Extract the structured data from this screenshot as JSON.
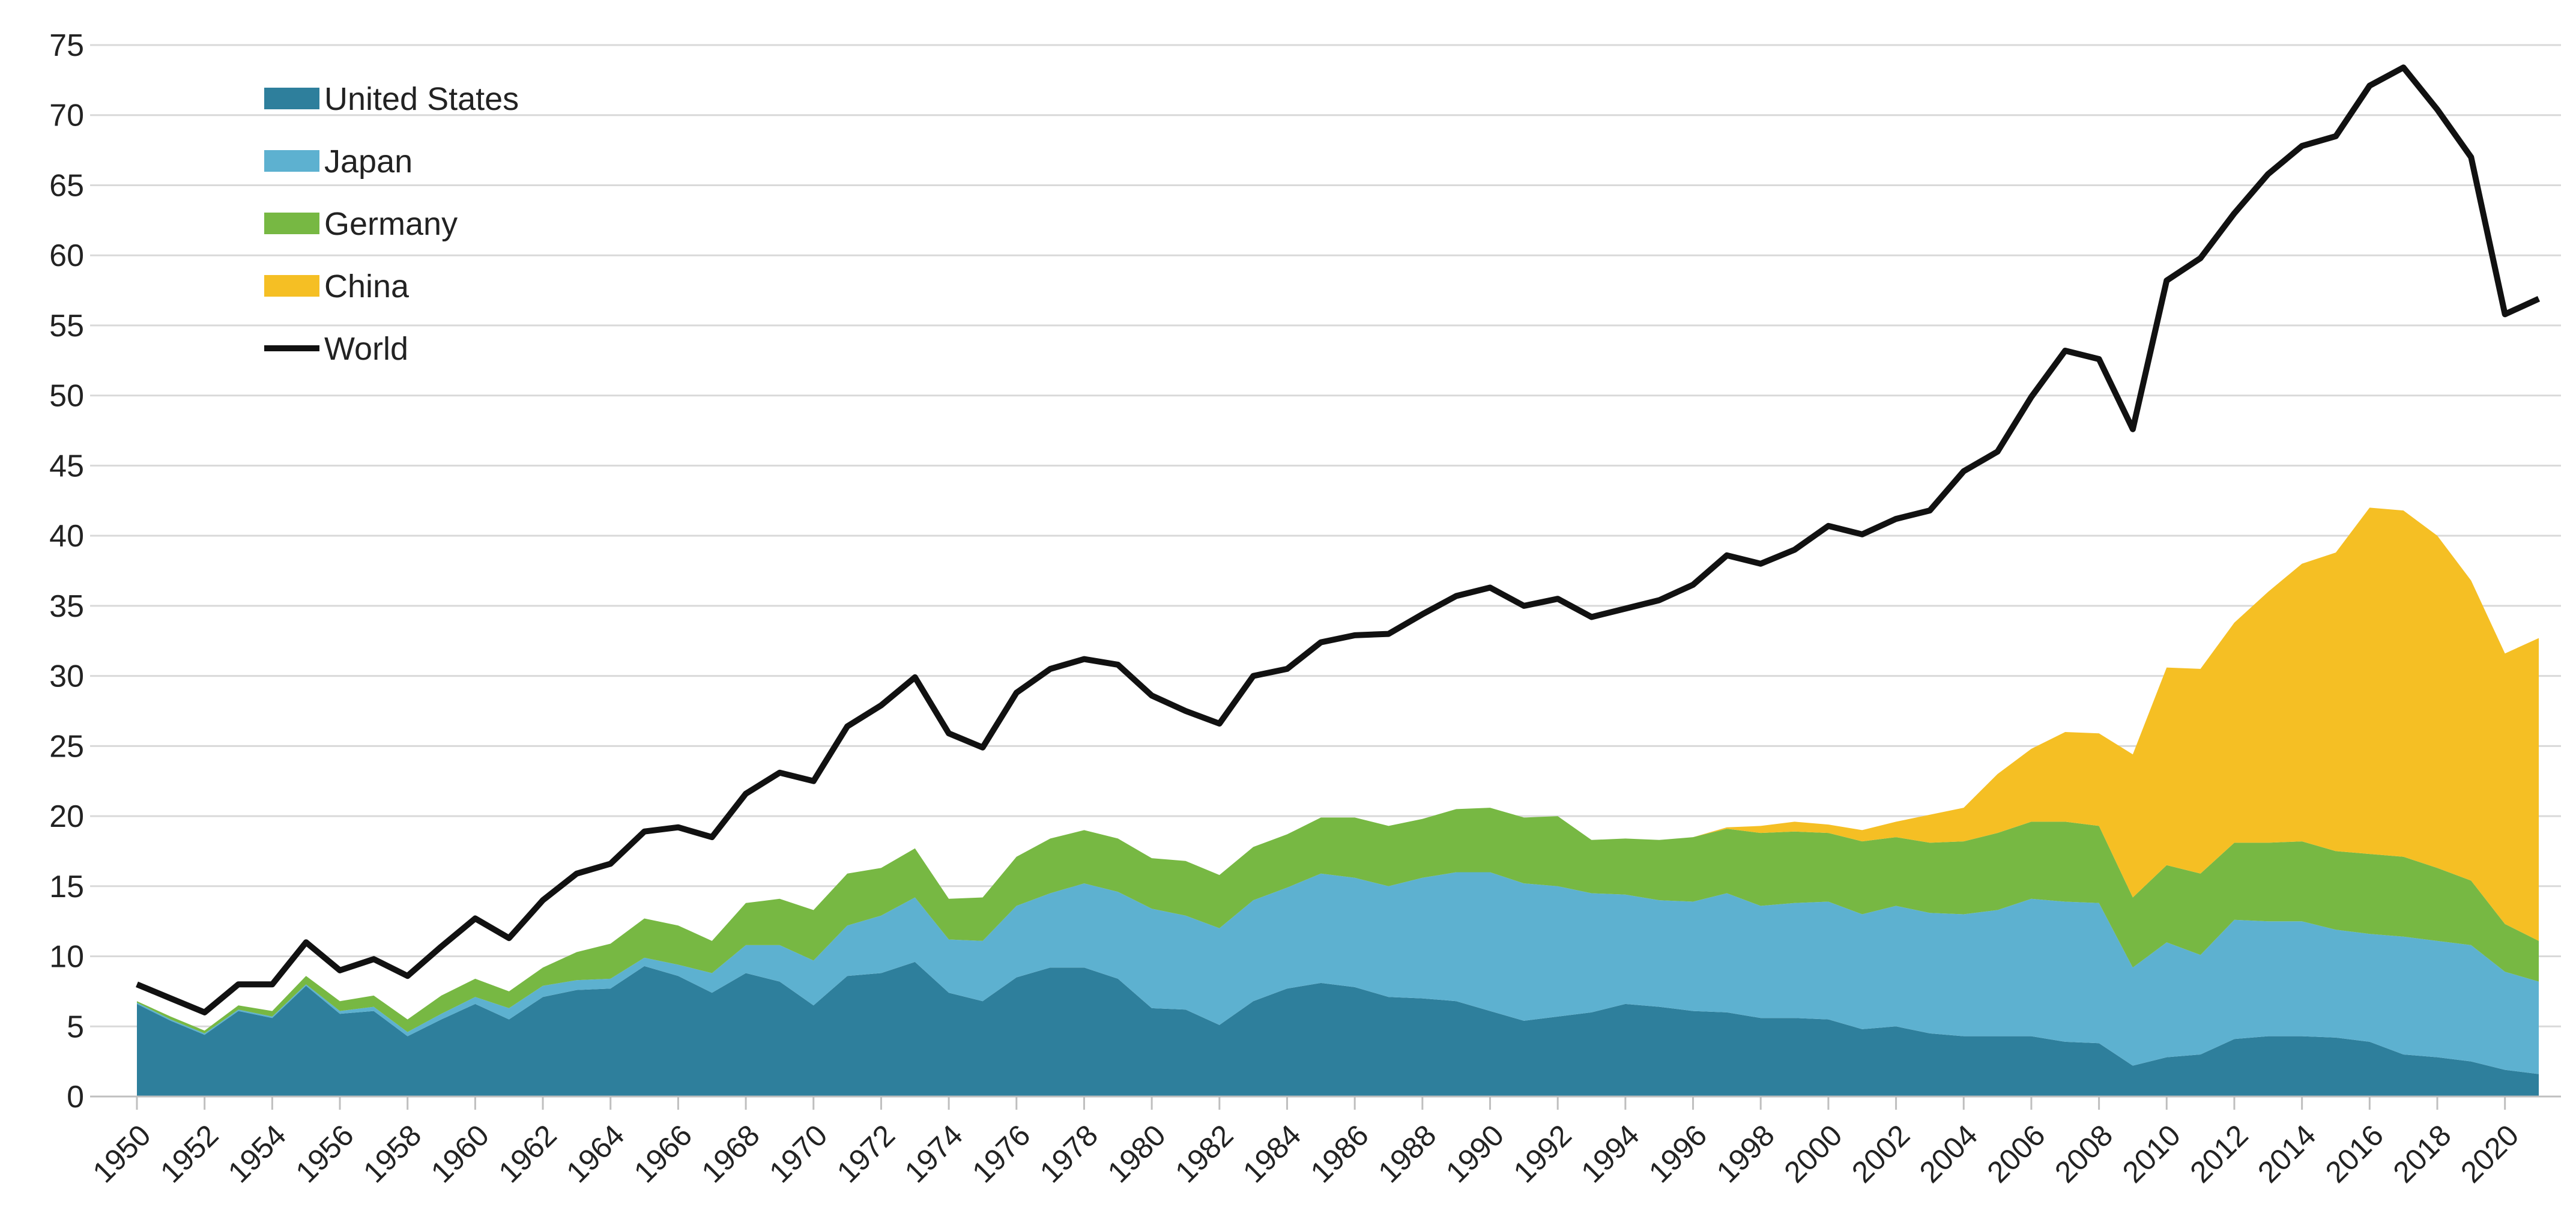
{
  "chart_data": {
    "type": "area",
    "stacked": true,
    "x": [
      1950,
      1951,
      1952,
      1953,
      1954,
      1955,
      1956,
      1957,
      1958,
      1959,
      1960,
      1961,
      1962,
      1963,
      1964,
      1965,
      1966,
      1967,
      1968,
      1969,
      1970,
      1971,
      1972,
      1973,
      1974,
      1975,
      1976,
      1977,
      1978,
      1979,
      1980,
      1981,
      1982,
      1983,
      1984,
      1985,
      1986,
      1987,
      1988,
      1989,
      1990,
      1991,
      1992,
      1993,
      1994,
      1995,
      1996,
      1997,
      1998,
      1999,
      2000,
      2001,
      2002,
      2003,
      2004,
      2005,
      2006,
      2007,
      2008,
      2009,
      2010,
      2011,
      2012,
      2013,
      2014,
      2015,
      2016,
      2017,
      2018,
      2019,
      2020,
      2021
    ],
    "x_tick_labels": [
      "1950",
      "1952",
      "1954",
      "1956",
      "1958",
      "1960",
      "1962",
      "1964",
      "1966",
      "1968",
      "1970",
      "1972",
      "1974",
      "1976",
      "1978",
      "1980",
      "1982",
      "1984",
      "1986",
      "1988",
      "1990",
      "1992",
      "1994",
      "1996",
      "1998",
      "2000",
      "2002",
      "2004",
      "2006",
      "2008",
      "2010",
      "2012",
      "2014",
      "2016",
      "2018",
      "2020"
    ],
    "y_ticks": [
      0,
      5,
      10,
      15,
      20,
      25,
      30,
      35,
      40,
      45,
      50,
      55,
      60,
      65,
      70,
      75
    ],
    "ylim": [
      0,
      75
    ],
    "grid": "horizontal",
    "legend_position": "top-left",
    "series": [
      {
        "name": "United States",
        "kind": "area",
        "color": "#2e7f9c",
        "values": [
          6.6,
          5.4,
          4.4,
          6.1,
          5.6,
          7.9,
          5.9,
          6.1,
          4.3,
          5.5,
          6.6,
          5.5,
          7.1,
          7.6,
          7.7,
          9.3,
          8.6,
          7.4,
          8.8,
          8.2,
          6.5,
          8.6,
          8.8,
          9.6,
          7.4,
          6.8,
          8.5,
          9.2,
          9.2,
          8.4,
          6.3,
          6.2,
          5.1,
          6.8,
          7.7,
          8.1,
          7.8,
          7.1,
          7.0,
          6.8,
          6.1,
          5.4,
          5.7,
          6.0,
          6.6,
          6.4,
          6.1,
          6.0,
          5.6,
          5.6,
          5.5,
          4.8,
          5.0,
          4.5,
          4.3,
          4.3,
          4.3,
          3.9,
          3.8,
          2.2,
          2.8,
          3.0,
          4.1,
          4.3,
          4.3,
          4.2,
          3.9,
          3.0,
          2.8,
          2.5,
          1.9,
          1.6
        ]
      },
      {
        "name": "Japan",
        "kind": "area",
        "color": "#5db1d0",
        "values": [
          0.1,
          0.1,
          0.1,
          0.1,
          0.1,
          0.1,
          0.2,
          0.3,
          0.3,
          0.4,
          0.5,
          0.8,
          0.8,
          0.7,
          0.7,
          0.6,
          0.8,
          1.4,
          2.0,
          2.6,
          3.2,
          3.6,
          4.1,
          4.6,
          3.8,
          4.3,
          5.1,
          5.3,
          6.0,
          6.2,
          7.1,
          6.7,
          6.9,
          7.2,
          7.2,
          7.8,
          7.8,
          7.9,
          8.6,
          9.2,
          9.9,
          9.8,
          9.3,
          8.5,
          7.8,
          7.6,
          7.8,
          8.5,
          8.0,
          8.2,
          8.4,
          8.2,
          8.6,
          8.6,
          8.7,
          9.0,
          9.8,
          10.0,
          10.0,
          7.0,
          8.2,
          7.1,
          8.5,
          8.2,
          8.2,
          7.7,
          7.7,
          8.4,
          8.3,
          8.3,
          7.0,
          6.6
        ]
      },
      {
        "name": "Germany",
        "kind": "area",
        "color": "#77b843",
        "values": [
          0.1,
          0.2,
          0.2,
          0.3,
          0.4,
          0.6,
          0.7,
          0.8,
          0.9,
          1.3,
          1.3,
          1.2,
          1.3,
          2.0,
          2.5,
          2.8,
          2.8,
          2.3,
          3.0,
          3.3,
          3.6,
          3.7,
          3.4,
          3.5,
          2.9,
          3.1,
          3.5,
          3.9,
          3.8,
          3.8,
          3.6,
          3.9,
          3.8,
          3.8,
          3.8,
          4.0,
          4.3,
          4.3,
          4.2,
          4.5,
          4.6,
          4.7,
          5.0,
          3.8,
          4.0,
          4.3,
          4.6,
          4.6,
          5.2,
          5.1,
          4.9,
          5.2,
          4.9,
          5.0,
          5.2,
          5.5,
          5.5,
          5.7,
          5.5,
          5.0,
          5.5,
          5.8,
          5.5,
          5.6,
          5.7,
          5.6,
          5.7,
          5.7,
          5.2,
          4.6,
          3.4,
          2.9
        ]
      },
      {
        "name": "China",
        "kind": "area",
        "color": "#f5bf24",
        "values": [
          0,
          0,
          0,
          0,
          0,
          0,
          0,
          0,
          0,
          0,
          0,
          0,
          0,
          0,
          0,
          0,
          0,
          0,
          0,
          0,
          0,
          0,
          0,
          0,
          0,
          0,
          0,
          0,
          0,
          0,
          0,
          0,
          0,
          0,
          0,
          0,
          0,
          0,
          0,
          0,
          0,
          0,
          0,
          0,
          0,
          0,
          0,
          0.1,
          0.5,
          0.7,
          0.6,
          0.8,
          1.1,
          2.0,
          2.4,
          4.2,
          5.2,
          6.4,
          6.6,
          10.2,
          14.1,
          14.6,
          15.7,
          17.9,
          19.8,
          21.3,
          24.7,
          24.7,
          23.7,
          21.4,
          19.3,
          21.6
        ]
      },
      {
        "name": "World",
        "kind": "line",
        "color": "#111111",
        "values": [
          8.0,
          7.0,
          6.0,
          8.0,
          8.0,
          11.0,
          9.0,
          9.8,
          8.6,
          10.7,
          12.7,
          11.3,
          14.0,
          15.9,
          16.6,
          18.9,
          19.2,
          18.5,
          21.6,
          23.1,
          22.5,
          26.4,
          27.9,
          29.9,
          25.9,
          24.9,
          28.8,
          30.5,
          31.2,
          30.8,
          28.6,
          27.5,
          26.6,
          30.0,
          30.5,
          32.4,
          32.9,
          33.0,
          34.4,
          35.7,
          36.3,
          35.0,
          35.5,
          34.2,
          34.8,
          35.4,
          36.5,
          38.6,
          38.0,
          39.0,
          40.7,
          40.1,
          41.2,
          41.8,
          44.6,
          46.0,
          49.9,
          53.2,
          52.6,
          47.6,
          58.2,
          59.8,
          63.0,
          65.8,
          67.8,
          68.5,
          72.1,
          73.4,
          70.4,
          67.0,
          55.8,
          56.9
        ]
      }
    ]
  }
}
